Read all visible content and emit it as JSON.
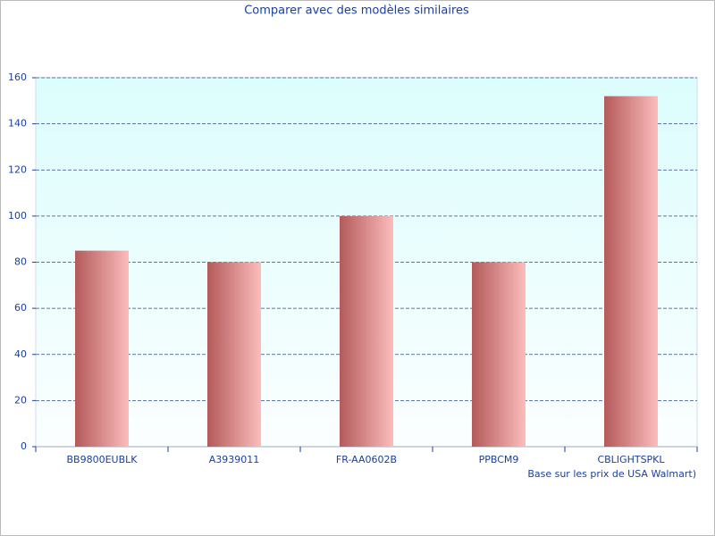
{
  "chart_data": {
    "type": "bar",
    "title": "Comparer avec des modèles similaires",
    "categories": [
      "BB9800EUBLK",
      "A3939011",
      "FR-AA0602B",
      "PPBCM9",
      "CBLIGHTSPKL"
    ],
    "values": [
      85,
      80,
      100,
      80,
      152
    ],
    "ylim": [
      0,
      160
    ],
    "yticks": [
      0,
      20,
      40,
      60,
      80,
      100,
      120,
      140,
      160
    ],
    "grid": true,
    "note": "Base sur les prix de USA Walmart)"
  }
}
